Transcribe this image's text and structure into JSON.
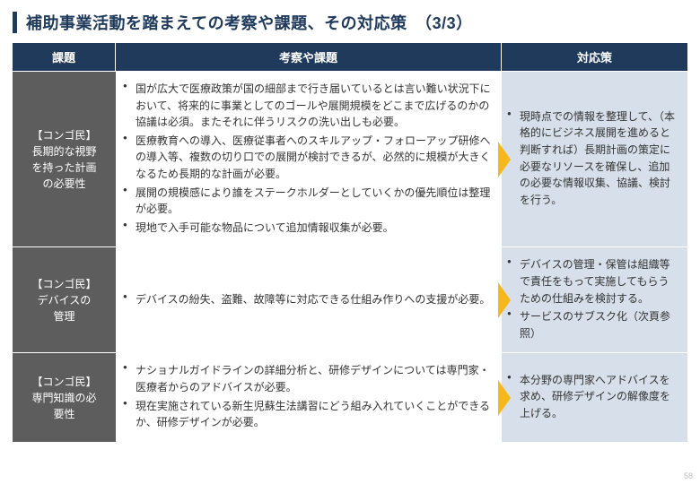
{
  "title": "補助事業活動を踏まえての考察や課題、その対応策　（3/3）",
  "header": {
    "c1": "課題",
    "c2": "考察や課題",
    "c3": "対応策"
  },
  "rows": [
    {
      "label": "【コンゴ民】\n長期的な視野\nを持った計画\nの必要性",
      "considerations": [
        "国が広大で医療政策が国の細部まで行き届いているとは言い難い状況下において、将来的に事業としてのゴールや展開規模をどこまで広げるのかの協議は必須。またそれに伴うリスクの洗い出しも必要。",
        "医療教育への導入、医療従事者へのスキルアップ・フォローアップ研修への導入等、複数の切り口での展開が検討できるが、必然的に規模が大きくなるため長期的な計画が必要。",
        "展開の規模感により誰をステークホルダーとしていくかの優先順位は整理が必要。",
        "現地で入手可能な物品について追加情報収集が必要。"
      ],
      "measures": [
        "現時点での情報を整理して、（本格的にビジネス展開を進めると判断すれば）長期計画の策定に必要なリソースを確保し、追加の必要な情報収集、協議、検討を行う。"
      ]
    },
    {
      "label": "【コンゴ民】\nデバイスの\n管理",
      "considerations": [
        "デバイスの紛失、盗難、故障等に対応できる仕組み作りへの支援が必要。"
      ],
      "measures": [
        "デバイスの管理・保管は組織等で責任をもって実施してもらうための仕組みを検討する。",
        "サービスのサブスク化（次頁参照）"
      ]
    },
    {
      "label": "【コンゴ民】\n専門知識の必\n要性",
      "considerations": [
        "ナショナルガイドラインの詳細分析と、研修デザインについては専門家・医療者からのアドバイスが必要。",
        "現在実施されている新生児蘇生法講習にどう組み入れていくことができるか、研修デザインが必要。"
      ],
      "measures": [
        "本分野の専門家へアドバイスを求め、研修デザインの解像度を上げる。"
      ]
    }
  ],
  "pagenum": "58"
}
